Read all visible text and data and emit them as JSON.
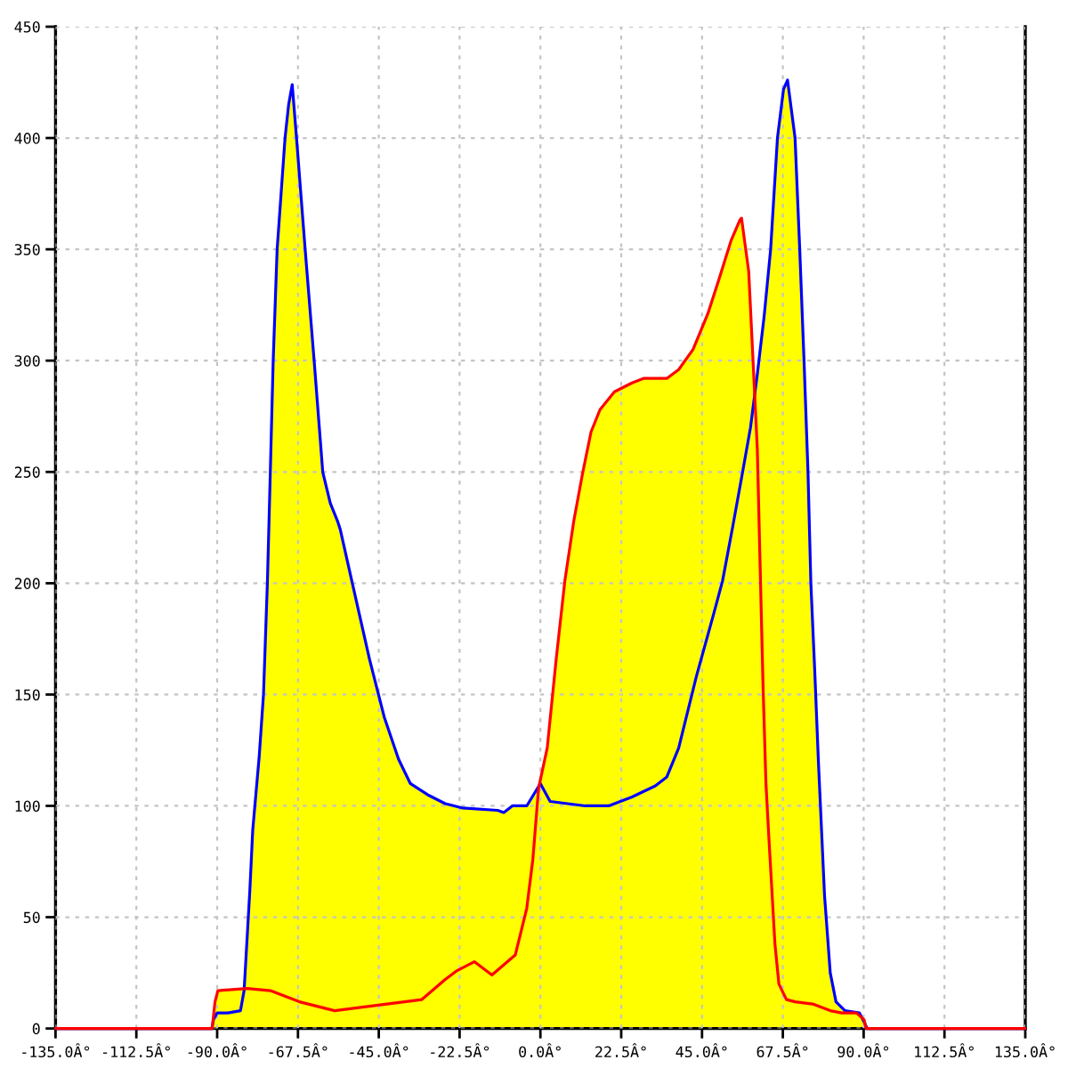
{
  "chart_data": {
    "type": "area",
    "xlim": [
      -135,
      135
    ],
    "xticks": [
      {
        "value": -135,
        "label": "-135.0Â°"
      },
      {
        "value": -112.5,
        "label": "-112.5Â°"
      },
      {
        "value": -90,
        "label": "-90.0Â°"
      },
      {
        "value": -67.5,
        "label": "-67.5Â°"
      },
      {
        "value": -45,
        "label": "-45.0Â°"
      },
      {
        "value": -22.5,
        "label": "-22.5Â°"
      },
      {
        "value": 0,
        "label": "0.0Â°"
      },
      {
        "value": 22.5,
        "label": "22.5Â°"
      },
      {
        "value": 45,
        "label": "45.0Â°"
      },
      {
        "value": 67.5,
        "label": "67.5Â°"
      },
      {
        "value": 90,
        "label": "90.0Â°"
      },
      {
        "value": 112.5,
        "label": "112.5Â°"
      },
      {
        "value": 135,
        "label": "135.0Â°"
      }
    ],
    "ylim": [
      0,
      450
    ],
    "yticks": [
      0,
      50,
      100,
      150,
      200,
      250,
      300,
      350,
      400,
      450
    ],
    "grid": true,
    "series": [
      {
        "color": "#ffff00",
        "x": [
          -91.4,
          -90.6,
          -89.8,
          -82.5,
          -80.9,
          -80.1,
          -78.3,
          -77.1,
          -76,
          -75.2,
          -74.4,
          -73.3,
          -71.1,
          -70.1,
          -69.1,
          -67.9,
          -65.5,
          -63,
          -60.6,
          -58.5,
          -56.5,
          -55.7,
          -52.5,
          -47.6,
          -43.5,
          -39.5,
          -36.2,
          -31.4,
          -26.5,
          -21.6,
          -11.9,
          -10.2,
          -7.8,
          -3.8,
          -0.5,
          0,
          1.9,
          4.4,
          6.8,
          9.3,
          11.7,
          14.1,
          16.6,
          20.6,
          25.5,
          28.7,
          35.2,
          38.5,
          42.5,
          46.6,
          49.8,
          53.1,
          55.5,
          56,
          58,
          59.2,
          59.7,
          60.4,
          62.3,
          64.1,
          66,
          67.7,
          68.8,
          70.9,
          72.2,
          73.4,
          74.5,
          75.3,
          76.4,
          77.4,
          79.1,
          80.7,
          82.3,
          84.8,
          88.8,
          90.1,
          91
        ],
        "values": [
          0,
          12,
          17,
          18,
          62,
          89,
          122,
          150,
          201,
          250,
          300,
          350,
          400,
          415,
          424,
          400,
          350,
          300,
          250,
          236,
          228,
          224,
          201,
          166,
          140,
          121,
          110,
          105,
          101,
          99,
          98,
          97,
          100,
          100,
          109,
          112,
          126,
          166,
          201,
          228,
          249,
          268,
          278,
          286,
          290,
          292,
          292,
          296,
          305,
          321,
          337,
          354,
          363,
          364,
          340,
          300,
          285,
          294,
          320,
          350,
          400,
          422,
          426,
          400,
          350,
          300,
          250,
          200,
          160,
          120,
          60,
          25,
          12,
          8,
          7,
          4,
          0
        ]
      },
      {
        "type": "line",
        "color": "#0000ff",
        "x": [
          -135,
          -91.5,
          -91,
          -90,
          -87,
          -83.5,
          -82.5,
          -80.9,
          -80.1,
          -78.3,
          -77.1,
          -76,
          -75.2,
          -74.4,
          -73.3,
          -71.1,
          -70.1,
          -69.1,
          -67.9,
          -65.5,
          -63,
          -60.6,
          -58.5,
          -56.5,
          -55.7,
          -52.5,
          -47.6,
          -43.5,
          -39.5,
          -36.2,
          -31.4,
          -26.5,
          -21.6,
          -11.9,
          -10.2,
          -7.8,
          -3.8,
          0,
          2.7,
          7.6,
          12.5,
          19,
          25.5,
          32,
          35.2,
          38.5,
          43.4,
          48.2,
          50.7,
          53.5,
          56.3,
          58.5,
          60.4,
          62.3,
          64.1,
          66,
          67.7,
          68.8,
          70.9,
          72.2,
          73.4,
          74.5,
          75.3,
          76.4,
          77.4,
          79.1,
          80.7,
          82.3,
          84.8,
          88.8,
          90.4,
          91,
          135
        ],
        "values": [
          0,
          0,
          4,
          7,
          7,
          8,
          17,
          62,
          89,
          122,
          150,
          201,
          250,
          300,
          350,
          400,
          415,
          424,
          400,
          350,
          300,
          250,
          236,
          228,
          224,
          201,
          166,
          140,
          121,
          110,
          105,
          101,
          99,
          98,
          97,
          100,
          100,
          110,
          102,
          101,
          100,
          100,
          104,
          109,
          113,
          126,
          158,
          186,
          201,
          225,
          250,
          270,
          294,
          320,
          350,
          400,
          422,
          426,
          400,
          350,
          300,
          250,
          200,
          160,
          120,
          60,
          25,
          12,
          8,
          7,
          2,
          0,
          0
        ]
      },
      {
        "type": "line",
        "color": "#ff0000",
        "x": [
          -135,
          -91.4,
          -90.6,
          -89.8,
          -81.7,
          -75.2,
          -67.1,
          -57.3,
          -47.6,
          -33,
          -26.5,
          -23.2,
          -18.4,
          -13.5,
          -7,
          -3.8,
          -2.1,
          -0.5,
          1.9,
          4.4,
          6.8,
          9.3,
          11.7,
          14.1,
          16.6,
          20.6,
          25.5,
          28.7,
          35.2,
          38.5,
          42.5,
          46.6,
          49.8,
          53.1,
          55.5,
          56,
          58,
          59.2,
          60.4,
          61.2,
          62,
          62.8,
          63.6,
          65.3,
          66.4,
          68.5,
          70.9,
          75.8,
          80.7,
          83.9,
          88,
          90.1,
          90.7,
          135
        ],
        "values": [
          0,
          0,
          12,
          17,
          18,
          17,
          12,
          8,
          10,
          13,
          22,
          26,
          30,
          24,
          33,
          54,
          76,
          108,
          126,
          166,
          201,
          228,
          249,
          268,
          278,
          286,
          290,
          292,
          292,
          296,
          305,
          321,
          337,
          354,
          363,
          364,
          340,
          300,
          260,
          206,
          153,
          110,
          86,
          38,
          20,
          13,
          12,
          11,
          8,
          7,
          7,
          4,
          0,
          0
        ]
      }
    ]
  }
}
